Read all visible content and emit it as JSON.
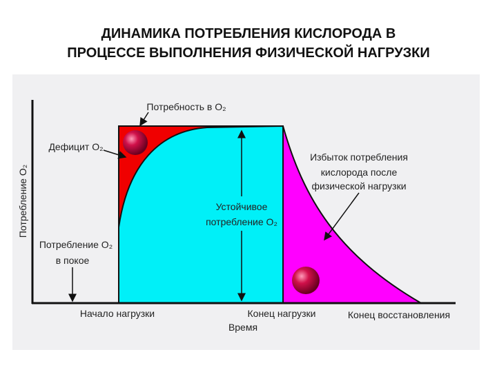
{
  "header": {
    "title": [
      "ДИНАМИКА ПОТРЕБЛЕНИЯ КИСЛОРОДА В",
      "ПРОЦЕССЕ ВЫПОЛНЕНИЯ ФИЗИЧЕСКОЙ НАГРУЗКИ"
    ]
  },
  "diagram": {
    "y_axis_label": "Потребление O₂",
    "x_axis_label": "Время",
    "x_labels": [
      "Начало нагрузки",
      "Конец нагрузки",
      "Конец восстановления"
    ],
    "demand_label": "Потребность в O₂",
    "deficit_label": "Дефицит O₂",
    "excess_label": [
      "Избыток потребления",
      "кислорода после",
      "физической нагрузки"
    ],
    "steady_label": [
      "Устойчивое",
      "потребление O₂"
    ],
    "rest_label": [
      "Потребление O₂",
      "в покое"
    ]
  }
}
